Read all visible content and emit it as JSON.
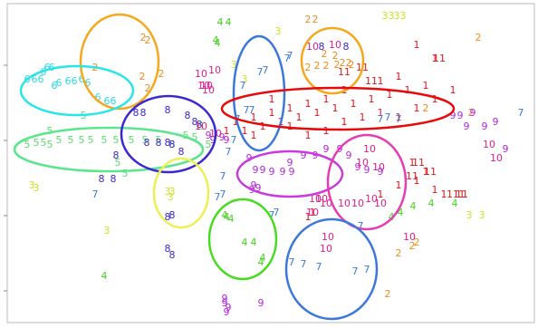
{
  "chart_data": {
    "type": "scatter",
    "title": "",
    "xlabel": "",
    "ylabel": "",
    "xlim": [
      0,
      594
    ],
    "ylim": [
      0,
      362
    ],
    "grid": false,
    "legend": "none",
    "series": [
      {
        "label": "1",
        "color": "#e8101a",
        "points": [
          [
            460,
            50
          ],
          [
            480,
            65
          ],
          [
            440,
            85
          ],
          [
            420,
            90
          ],
          [
            380,
            100
          ],
          [
            360,
            110
          ],
          [
            340,
            115
          ],
          [
            320,
            120
          ],
          [
            300,
            125
          ],
          [
            280,
            130
          ],
          [
            260,
            135
          ],
          [
            250,
            145
          ],
          [
            270,
            145
          ],
          [
            290,
            140
          ],
          [
            310,
            135
          ],
          [
            330,
            130
          ],
          [
            350,
            125
          ],
          [
            370,
            120
          ],
          [
            390,
            115
          ],
          [
            410,
            110
          ],
          [
            430,
            105
          ],
          [
            450,
            100
          ],
          [
            470,
            95
          ],
          [
            300,
            110
          ],
          [
            320,
            140
          ],
          [
            340,
            150
          ],
          [
            360,
            145
          ],
          [
            380,
            135
          ],
          [
            400,
            130
          ],
          [
            420,
            125
          ],
          [
            440,
            130
          ],
          [
            460,
            120
          ],
          [
            480,
            110
          ],
          [
            500,
            100
          ],
          [
            455,
            180
          ],
          [
            470,
            190
          ],
          [
            460,
            200
          ],
          [
            480,
            210
          ],
          [
            490,
            215
          ],
          [
            510,
            215
          ],
          [
            440,
            205
          ],
          [
            345,
            235
          ],
          [
            340,
            240
          ],
          [
            420,
            215
          ],
          [
            280,
            150
          ]
        ]
      },
      {
        "label": "2",
        "color": "#f08c1e",
        "points": [
          [
            340,
            22
          ],
          [
            348,
            22
          ],
          [
            528,
            42
          ],
          [
            158,
            42
          ],
          [
            163,
            45
          ],
          [
            157,
            85
          ],
          [
            163,
            98
          ],
          [
            178,
            82
          ],
          [
            105,
            75
          ],
          [
            340,
            75
          ],
          [
            350,
            73
          ],
          [
            360,
            73
          ],
          [
            372,
            72
          ],
          [
            378,
            70
          ],
          [
            385,
            70
          ],
          [
            388,
            72
          ],
          [
            358,
            60
          ],
          [
            370,
            62
          ],
          [
            455,
            272
          ],
          [
            460,
            268
          ],
          [
            440,
            280
          ],
          [
            428,
            325
          ],
          [
            470,
            120
          ],
          [
            520,
            125
          ]
        ]
      },
      {
        "label": "3",
        "color": "#c8e61e",
        "points": [
          [
            425,
            18
          ],
          [
            432,
            18
          ],
          [
            438,
            18
          ],
          [
            445,
            18
          ],
          [
            307,
            35
          ],
          [
            258,
            72
          ],
          [
            270,
            88
          ],
          [
            185,
            212
          ],
          [
            190,
            212
          ],
          [
            188,
            218
          ],
          [
            118,
            255
          ],
          [
            35,
            205
          ],
          [
            40,
            208
          ],
          [
            518,
            238
          ],
          [
            532,
            238
          ]
        ]
      },
      {
        "label": "4",
        "color": "#46d21e",
        "points": [
          [
            243,
            25
          ],
          [
            252,
            25
          ],
          [
            238,
            45
          ],
          [
            240,
            48
          ],
          [
            250,
            240
          ],
          [
            255,
            242
          ],
          [
            248,
            238
          ],
          [
            270,
            268
          ],
          [
            280,
            268
          ],
          [
            290,
            285
          ],
          [
            115,
            305
          ],
          [
            432,
            240
          ],
          [
            442,
            235
          ],
          [
            456,
            228
          ],
          [
            476,
            225
          ],
          [
            502,
            225
          ],
          [
            288,
            290
          ]
        ]
      },
      {
        "label": "5",
        "color": "#5adc6e",
        "points": [
          [
            30,
            160
          ],
          [
            40,
            158
          ],
          [
            48,
            158
          ],
          [
            55,
            160
          ],
          [
            65,
            155
          ],
          [
            78,
            155
          ],
          [
            90,
            155
          ],
          [
            100,
            155
          ],
          [
            115,
            155
          ],
          [
            128,
            155
          ],
          [
            145,
            155
          ],
          [
            160,
            155
          ],
          [
            175,
            155
          ],
          [
            190,
            160
          ],
          [
            205,
            150
          ],
          [
            215,
            152
          ],
          [
            55,
            145
          ],
          [
            92,
            128
          ],
          [
            130,
            180
          ],
          [
            138,
            192
          ],
          [
            222,
            140
          ],
          [
            230,
            160
          ]
        ]
      },
      {
        "label": "6",
        "color": "#28dce6",
        "points": [
          [
            30,
            88
          ],
          [
            38,
            88
          ],
          [
            45,
            88
          ],
          [
            52,
            75
          ],
          [
            57,
            75
          ],
          [
            60,
            95
          ],
          [
            65,
            92
          ],
          [
            75,
            90
          ],
          [
            82,
            90
          ],
          [
            90,
            88
          ],
          [
            97,
            92
          ],
          [
            108,
            108
          ],
          [
            118,
            112
          ],
          [
            125,
            112
          ],
          [
            48,
            80
          ]
        ]
      },
      {
        "label": "7",
        "color": "#3c78dc",
        "points": [
          [
            287,
            80
          ],
          [
            293,
            78
          ],
          [
            317,
            65
          ],
          [
            320,
            62
          ],
          [
            268,
            95
          ],
          [
            272,
            122
          ],
          [
            278,
            122
          ],
          [
            262,
            132
          ],
          [
            258,
            155
          ],
          [
            252,
            168
          ],
          [
            246,
            195
          ],
          [
            246,
            215
          ],
          [
            240,
            218
          ],
          [
            300,
            238
          ],
          [
            305,
            235
          ],
          [
            322,
            290
          ],
          [
            335,
            292
          ],
          [
            352,
            295
          ],
          [
            392,
            300
          ],
          [
            405,
            298
          ],
          [
            420,
            132
          ],
          [
            428,
            130
          ],
          [
            440,
            132
          ],
          [
            575,
            125
          ],
          [
            105,
            215
          ],
          [
            398,
            250
          ]
        ]
      },
      {
        "label": "8",
        "color": "#3c28d2",
        "points": [
          [
            355,
            52
          ],
          [
            382,
            52
          ],
          [
            150,
            125
          ],
          [
            158,
            125
          ],
          [
            185,
            122
          ],
          [
            207,
            128
          ],
          [
            215,
            135
          ],
          [
            220,
            138
          ],
          [
            162,
            158
          ],
          [
            175,
            158
          ],
          [
            185,
            158
          ],
          [
            190,
            160
          ],
          [
            200,
            168
          ],
          [
            128,
            172
          ],
          [
            112,
            198
          ],
          [
            125,
            198
          ],
          [
            185,
            240
          ],
          [
            190,
            238
          ],
          [
            185,
            275
          ],
          [
            190,
            282
          ]
        ]
      },
      {
        "label": "9",
        "color": "#b428dc",
        "points": [
          [
            275,
            175
          ],
          [
            282,
            188
          ],
          [
            290,
            188
          ],
          [
            300,
            190
          ],
          [
            312,
            190
          ],
          [
            322,
            190
          ],
          [
            320,
            180
          ],
          [
            335,
            172
          ],
          [
            348,
            172
          ],
          [
            360,
            165
          ],
          [
            375,
            165
          ],
          [
            385,
            172
          ],
          [
            395,
            185
          ],
          [
            405,
            188
          ],
          [
            420,
            190
          ],
          [
            500,
            128
          ],
          [
            508,
            128
          ],
          [
            522,
            125
          ],
          [
            547,
            135
          ],
          [
            558,
            165
          ],
          [
            278,
            210
          ],
          [
            280,
            205
          ],
          [
            285,
            208
          ],
          [
            288,
            335
          ],
          [
            248,
            330
          ],
          [
            252,
            340
          ],
          [
            250,
            345
          ],
          [
            248,
            335
          ],
          [
            245,
            152
          ],
          [
            250,
            155
          ],
          [
            230,
            150
          ],
          [
            235,
            155
          ],
          [
            515,
            140
          ],
          [
            535,
            140
          ]
        ]
      },
      {
        "label": "10",
        "color": "#dc1e8c",
        "points": [
          [
            222,
            82
          ],
          [
            225,
            95
          ],
          [
            228,
            95
          ],
          [
            230,
            100
          ],
          [
            237,
            78
          ],
          [
            345,
            52
          ],
          [
            370,
            50
          ],
          [
            408,
            165
          ],
          [
            400,
            180
          ],
          [
            418,
            185
          ],
          [
            348,
            220
          ],
          [
            355,
            220
          ],
          [
            360,
            225
          ],
          [
            380,
            225
          ],
          [
            395,
            225
          ],
          [
            410,
            220
          ],
          [
            420,
            225
          ],
          [
            345,
            235
          ],
          [
            362,
            262
          ],
          [
            360,
            275
          ],
          [
            540,
            160
          ],
          [
            548,
            175
          ],
          [
            452,
            262
          ],
          [
            222,
            140
          ],
          [
            238,
            148
          ]
        ]
      },
      {
        "label": "11",
        "color": "#d21e1e",
        "points": [
          [
            485,
            65
          ],
          [
            462,
            180
          ],
          [
            475,
            190
          ],
          [
            455,
            195
          ],
          [
            500,
            215
          ],
          [
            510,
            215
          ],
          [
            410,
            90
          ],
          [
            400,
            75
          ],
          [
            380,
            80
          ]
        ]
      }
    ],
    "ellipses": [
      {
        "color": "#f5a81e",
        "cx": 132,
        "cy": 68,
        "rx": 43,
        "ry": 52
      },
      {
        "color": "#28e6e6",
        "cx": 85,
        "cy": 100,
        "rx": 62,
        "ry": 27
      },
      {
        "color": "#5ae68c",
        "cx": 120,
        "cy": 165,
        "rx": 104,
        "ry": 24
      },
      {
        "color": "#3c28d2",
        "cx": 186,
        "cy": 148,
        "rx": 52,
        "ry": 42
      },
      {
        "color": "#ecf050",
        "cx": 200,
        "cy": 213,
        "rx": 30,
        "ry": 38
      },
      {
        "color": "#3c78dc",
        "cx": 286,
        "cy": 103,
        "rx": 28,
        "ry": 63
      },
      {
        "color": "#f5a81e",
        "cx": 367,
        "cy": 67,
        "rx": 34,
        "ry": 36
      },
      {
        "color": "#e80a0a",
        "cx": 373,
        "cy": 120,
        "rx": 128,
        "ry": 23
      },
      {
        "color": "#c83cdc",
        "cx": 320,
        "cy": 192,
        "rx": 58,
        "ry": 25
      },
      {
        "color": "#e63cb4",
        "cx": 405,
        "cy": 201,
        "rx": 43,
        "ry": 52
      },
      {
        "color": "#46dc1e",
        "cx": 268,
        "cy": 264,
        "rx": 37,
        "ry": 44
      },
      {
        "color": "#3c78dc",
        "cx": 366,
        "cy": 297,
        "rx": 50,
        "ry": 55
      }
    ]
  }
}
